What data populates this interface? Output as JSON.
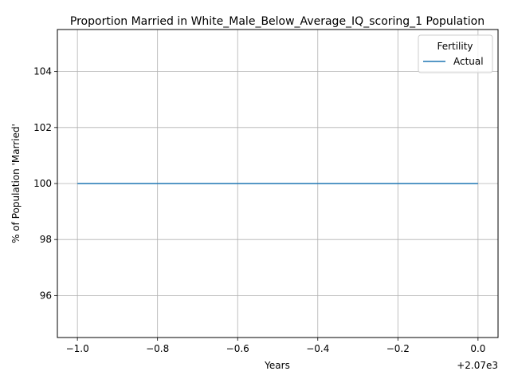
{
  "chart_data": {
    "type": "line",
    "title": "Proportion Married in White_Male_Below_Average_IQ_scoring_1 Population",
    "xlabel": "Years",
    "ylabel": "% of Population 'Married'",
    "x_offset_label": "+2.07e3",
    "xlim": [
      -1.05,
      0.05
    ],
    "ylim": [
      94.5,
      105.5
    ],
    "x_ticks": [
      -1.0,
      -0.8,
      -0.6,
      -0.4,
      -0.2,
      0.0
    ],
    "x_tick_labels": [
      "−1.0",
      "−0.8",
      "−0.6",
      "−0.4",
      "−0.2",
      "0.0"
    ],
    "y_ticks": [
      96,
      98,
      100,
      102,
      104
    ],
    "y_tick_labels": [
      "96",
      "98",
      "100",
      "102",
      "104"
    ],
    "grid": true,
    "legend": {
      "title": "Fertility",
      "placement": "top-right"
    },
    "series": [
      {
        "name": "Actual",
        "color": "#1f77b4",
        "x": [
          -1.0,
          0.0
        ],
        "y": [
          100,
          100
        ]
      }
    ]
  }
}
